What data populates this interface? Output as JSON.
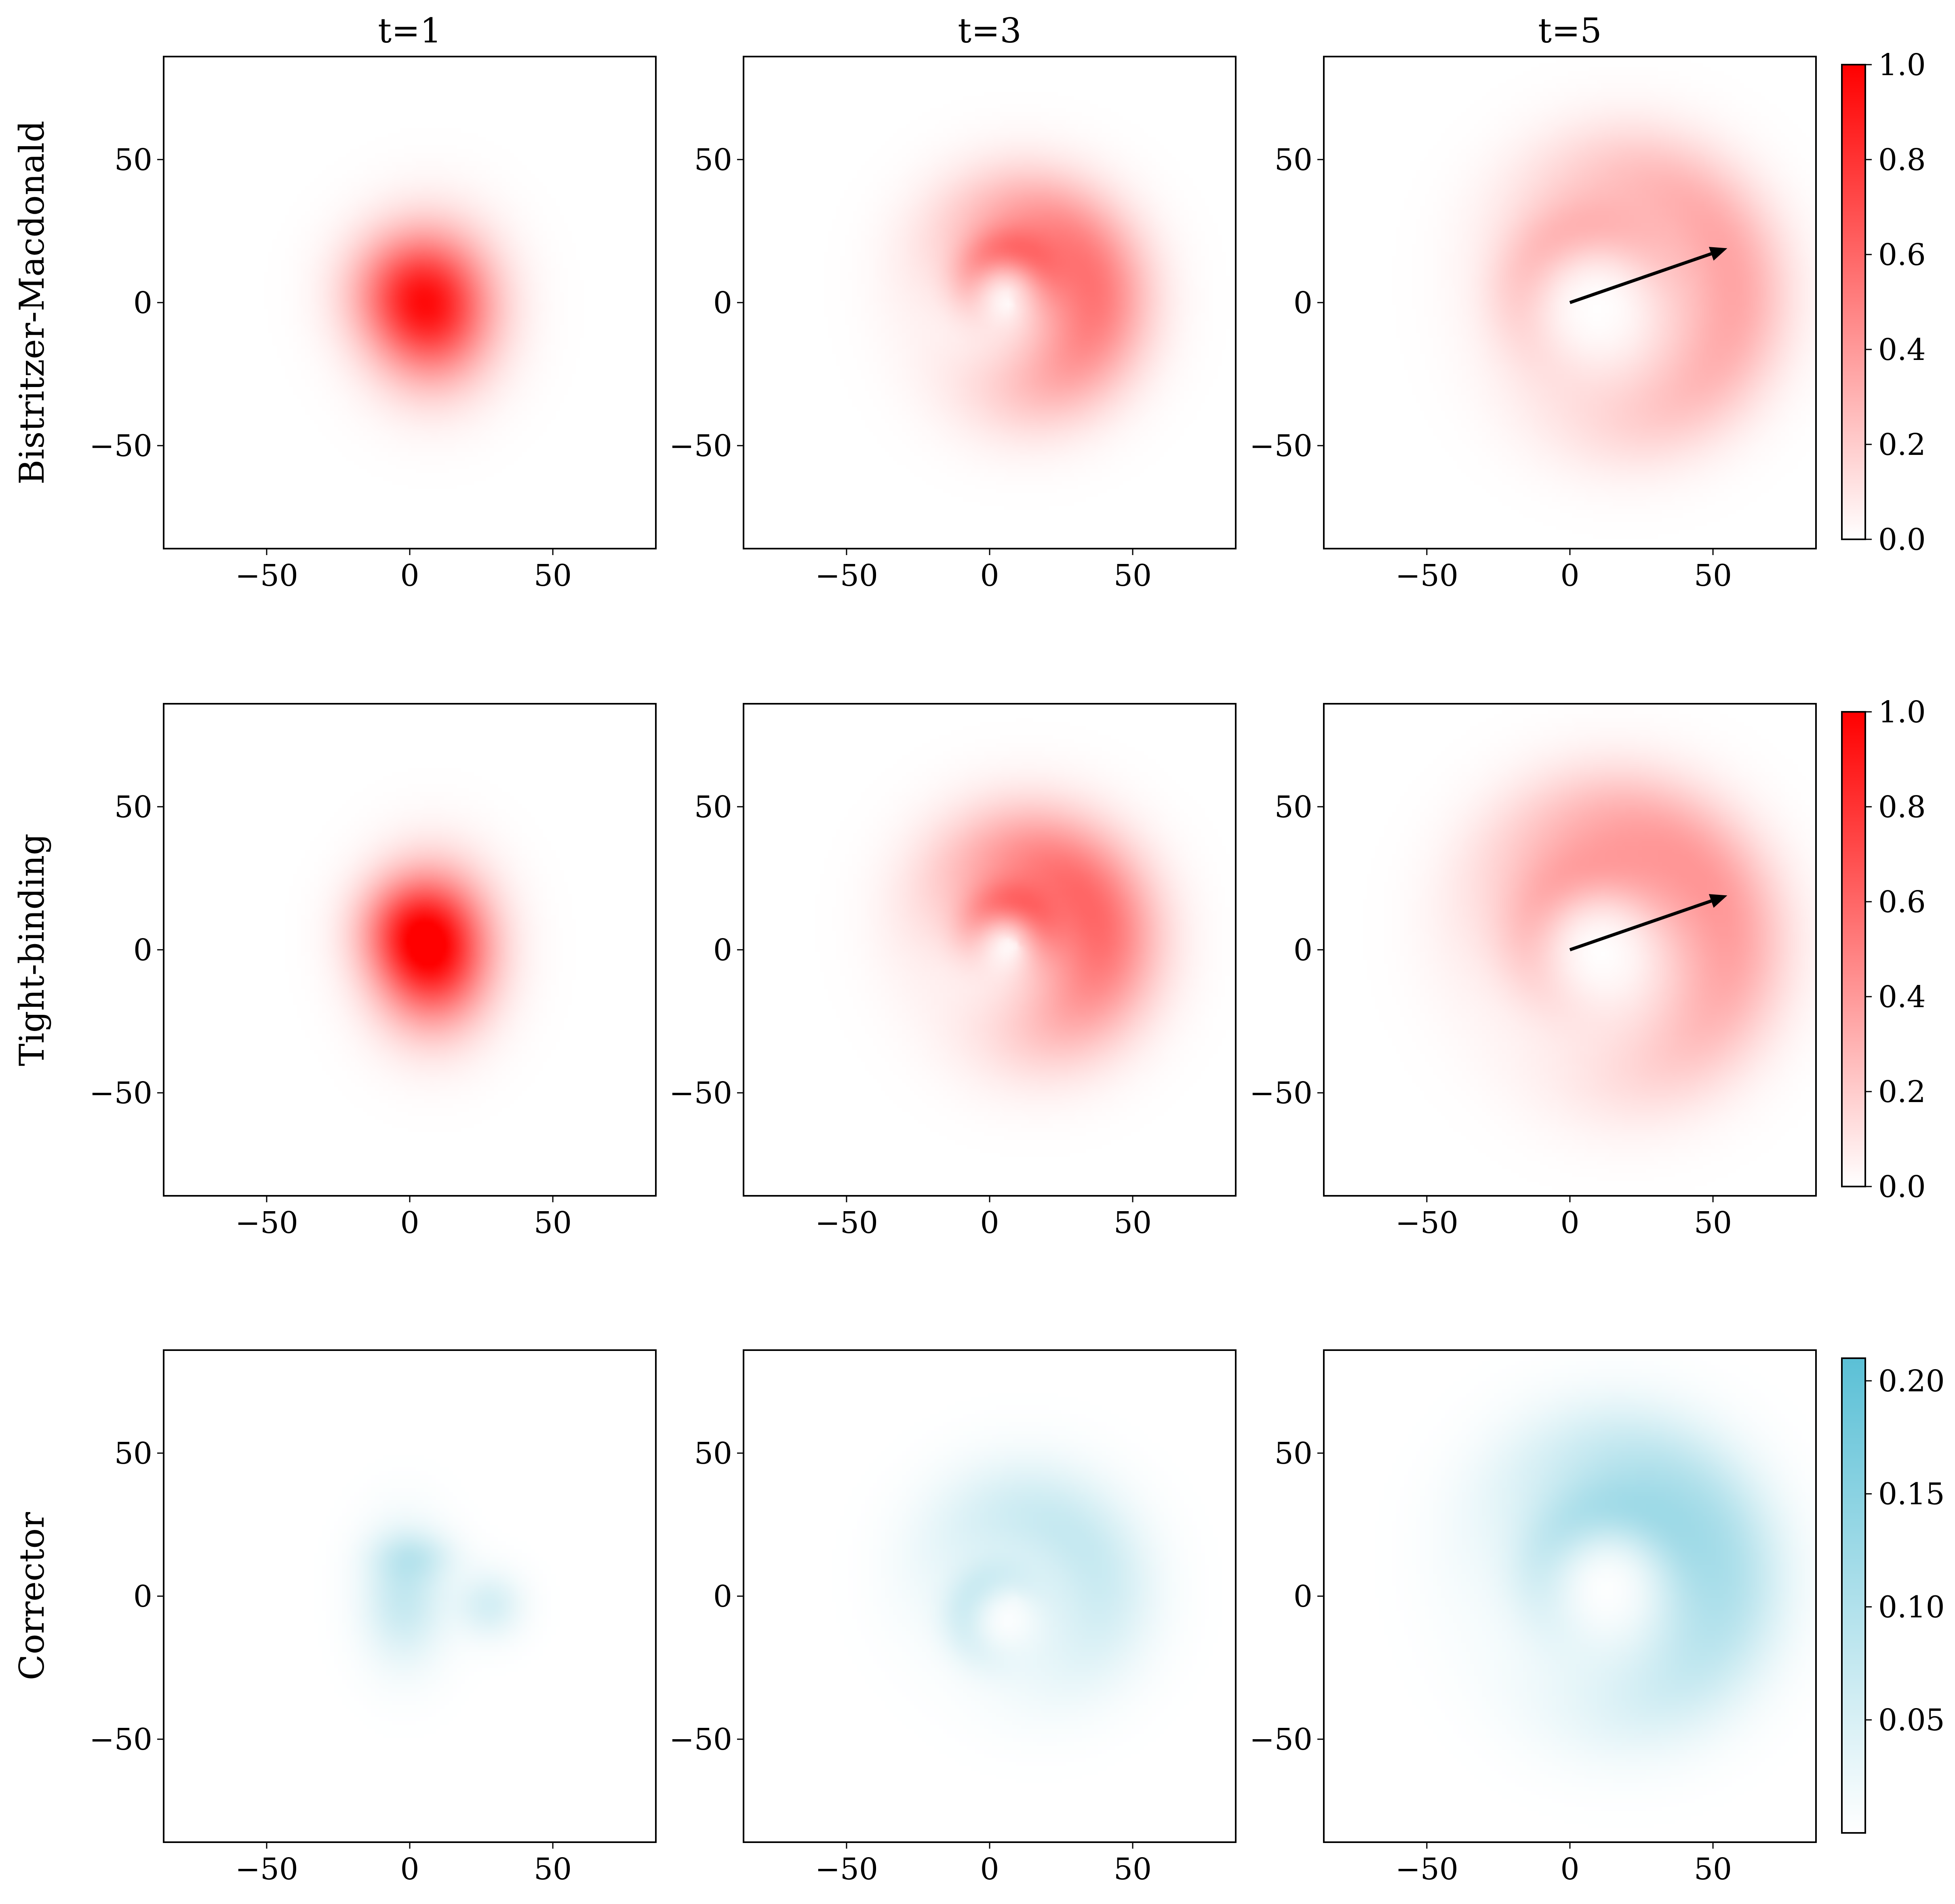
{
  "chart_data": {
    "type": "heatmap",
    "layout": "3x3 grid of density maps with one colorbar per row",
    "column_titles": [
      "t=1",
      "t=3",
      "t=5"
    ],
    "row_labels": [
      "Bistritzer-Macdonald",
      "Tight-binding",
      "Corrector"
    ],
    "axes": {
      "xlim": [
        -86,
        86
      ],
      "ylim": [
        -86,
        86
      ],
      "xticks": [
        -50,
        0,
        50
      ],
      "yticks": [
        -50,
        0,
        50
      ],
      "xtick_labels": [
        "−50",
        "0",
        "50"
      ],
      "ytick_labels": [
        "−50",
        "0",
        "50"
      ]
    },
    "colorbars": [
      {
        "row": 0,
        "color": "#ff0000",
        "min": 0.0,
        "max": 1.0,
        "ticks": [
          0.0,
          0.2,
          0.4,
          0.6,
          0.8,
          1.0
        ],
        "tick_labels": [
          "0.0",
          "0.2",
          "0.4",
          "0.6",
          "0.8",
          "1.0"
        ]
      },
      {
        "row": 1,
        "color": "#ff0000",
        "min": 0.0,
        "max": 1.0,
        "ticks": [
          0.0,
          0.2,
          0.4,
          0.6,
          0.8,
          1.0
        ],
        "tick_labels": [
          "0.0",
          "0.2",
          "0.4",
          "0.6",
          "0.8",
          "1.0"
        ]
      },
      {
        "row": 2,
        "color": "#5bc0d6",
        "min": 0.0,
        "max": 0.21,
        "ticks": [
          0.05,
          0.1,
          0.15,
          0.2
        ],
        "tick_labels": [
          "0.05",
          "0.10",
          "0.15",
          "0.20"
        ]
      }
    ],
    "arrows": [
      {
        "row": 0,
        "col": 2,
        "from": [
          0,
          0
        ],
        "to": [
          55,
          19
        ]
      },
      {
        "row": 1,
        "col": 2,
        "from": [
          0,
          0
        ],
        "to": [
          55,
          19
        ]
      }
    ],
    "panels": [
      {
        "row": 0,
        "col": 0,
        "color": "#ff0000",
        "blobs": [
          {
            "x": 8,
            "y": -2,
            "sx": 15,
            "sy": 18,
            "w": 0.8
          },
          {
            "x": -5,
            "y": 5,
            "sx": 14,
            "sy": 14,
            "w": 0.25
          }
        ]
      },
      {
        "row": 0,
        "col": 1,
        "color": "#ff0000",
        "rings": [
          {
            "x": 8,
            "y": 0,
            "r": 28,
            "w": 14,
            "amp": 0.55,
            "phase": 0.3
          },
          {
            "x": 6,
            "y": 5,
            "r": 13,
            "w": 6,
            "amp": 0.3,
            "phase": 1.8
          }
        ]
      },
      {
        "row": 0,
        "col": 2,
        "color": "#ff0000",
        "rings": [
          {
            "x": 15,
            "y": 2,
            "r": 42,
            "w": 14,
            "amp": 0.35,
            "phase": 0.2
          },
          {
            "x": 8,
            "y": 0,
            "r": 25,
            "w": 9,
            "amp": 0.22,
            "phase": 2.0
          }
        ]
      },
      {
        "row": 1,
        "col": 0,
        "color": "#ff0000",
        "blobs": [
          {
            "x": 8,
            "y": 0,
            "sx": 14,
            "sy": 18,
            "w": 0.95
          },
          {
            "x": -3,
            "y": 8,
            "sx": 12,
            "sy": 12,
            "w": 0.25
          }
        ]
      },
      {
        "row": 1,
        "col": 1,
        "color": "#ff0000",
        "rings": [
          {
            "x": 10,
            "y": 2,
            "r": 28,
            "w": 15,
            "amp": 0.6,
            "phase": 0.5
          },
          {
            "x": 6,
            "y": 4,
            "r": 12,
            "w": 6,
            "amp": 0.32,
            "phase": 1.5
          }
        ]
      },
      {
        "row": 1,
        "col": 2,
        "color": "#ff0000",
        "rings": [
          {
            "x": 12,
            "y": 0,
            "r": 43,
            "w": 15,
            "amp": 0.4,
            "phase": 0.6
          },
          {
            "x": 10,
            "y": 2,
            "r": 24,
            "w": 9,
            "amp": 0.22,
            "phase": 2.3
          }
        ]
      },
      {
        "row": 2,
        "col": 0,
        "color": "#5bc0d6",
        "blobs": [
          {
            "x": -2,
            "y": 0,
            "sx": 10,
            "sy": 16,
            "w": 0.35
          },
          {
            "x": 28,
            "y": -3,
            "sx": 8,
            "sy": 8,
            "w": 0.25
          },
          {
            "x": 2,
            "y": 14,
            "sx": 10,
            "sy": 6,
            "w": 0.2
          }
        ]
      },
      {
        "row": 2,
        "col": 1,
        "color": "#5bc0d6",
        "rings": [
          {
            "x": 10,
            "y": 0,
            "r": 28,
            "w": 14,
            "amp": 0.35,
            "phase": 0.8
          },
          {
            "x": 5,
            "y": -8,
            "r": 14,
            "w": 6,
            "amp": 0.25,
            "phase": 2.6
          }
        ]
      },
      {
        "row": 2,
        "col": 2,
        "color": "#5bc0d6",
        "rings": [
          {
            "x": 12,
            "y": 5,
            "r": 42,
            "w": 15,
            "amp": 0.5,
            "phase": 0.4
          },
          {
            "x": 14,
            "y": 5,
            "r": 24,
            "w": 9,
            "amp": 0.35,
            "phase": 1.9
          }
        ]
      }
    ]
  }
}
